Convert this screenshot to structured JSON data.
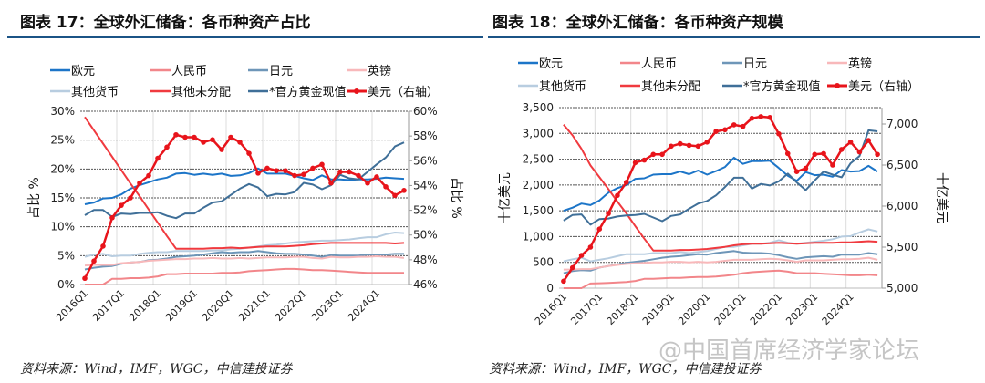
{
  "charts_meta": [
    {
      "title": "图表 17：全球外汇储备：各币种资产占比",
      "source": "资料来源：Wind，IMF，WGC，中信建投证券"
    },
    {
      "title": "图表 18：全球外汇储备：各币种资产规模",
      "source": "资料来源：Wind，IMF，WGC，中信建投证券"
    }
  ],
  "watermark": "@中国首席经济学家论坛",
  "colors": {
    "eur": "#1c75c8",
    "rmb": "#f2868a",
    "jpy": "#6e96b8",
    "gbp": "#f8b8ba",
    "other": "#b8cde0",
    "unalloc": "#f03a3f",
    "gold": "#3f6f98",
    "usd": "#e8141b"
  },
  "chart_data": [
    {
      "type": "line",
      "title": "图表 17：全球外汇储备：各币种资产占比",
      "ylabel": "占比 %",
      "y2label": "占比 %",
      "ylim": [
        0,
        30
      ],
      "yticks": [
        "0%",
        "5%",
        "10%",
        "15%",
        "20%",
        "25%",
        "30%"
      ],
      "y2lim": [
        46,
        60
      ],
      "y2ticks": [
        "46%",
        "48%",
        "50%",
        "52%",
        "54%",
        "56%",
        "58%",
        "60%"
      ],
      "xticks": [
        "2016Q1",
        "2017Q1",
        "2018Q1",
        "2019Q1",
        "2020Q1",
        "2021Q1",
        "2022Q1",
        "2023Q1",
        "2024Q1"
      ],
      "n_points": 36,
      "legend": "top",
      "series": [
        {
          "key": "eur",
          "name": "欧元",
          "axis": "left",
          "values": [
            13.9,
            14.2,
            14.9,
            15.0,
            15.6,
            16.6,
            17.2,
            17.7,
            18.2,
            18.5,
            19.2,
            19.3,
            19.0,
            19.2,
            19.0,
            19.2,
            18.8,
            18.9,
            19.3,
            20.1,
            19.2,
            19.2,
            19.2,
            18.8,
            18.4,
            18.1,
            18.9,
            18.2,
            18.2,
            18.1,
            18.2,
            18.2,
            18.3,
            18.5,
            18.4,
            18.3
          ]
        },
        {
          "key": "rmb",
          "name": "人民币",
          "axis": "left",
          "values": [
            0,
            0,
            0,
            1.0,
            1.0,
            1.1,
            1.1,
            1.2,
            1.4,
            1.8,
            1.8,
            1.9,
            1.9,
            1.9,
            1.9,
            2.0,
            2.0,
            2.1,
            2.3,
            2.4,
            2.5,
            2.6,
            2.7,
            2.7,
            2.6,
            2.5,
            2.5,
            2.4,
            2.3,
            2.2,
            2.1,
            2.0,
            2.0,
            2.0,
            2.0,
            2.0
          ]
        },
        {
          "key": "jpy",
          "name": "日元",
          "axis": "left",
          "values": [
            2.6,
            2.9,
            3.1,
            3.2,
            3.6,
            3.8,
            3.9,
            4.2,
            4.3,
            4.5,
            4.8,
            4.9,
            5.0,
            5.2,
            5.4,
            5.6,
            5.5,
            5.6,
            5.6,
            5.8,
            5.6,
            5.4,
            5.3,
            5.3,
            5.2,
            5.0,
            4.8,
            5.1,
            5.0,
            5.0,
            5.0,
            5.2,
            5.2,
            5.2,
            5.3,
            5.3
          ]
        },
        {
          "key": "gbp",
          "name": "英镑",
          "axis": "left",
          "values": [
            3.3,
            3.4,
            3.4,
            3.4,
            3.7,
            3.8,
            3.9,
            4.1,
            4.2,
            4.3,
            4.4,
            4.4,
            4.5,
            4.5,
            4.6,
            4.5,
            4.5,
            4.6,
            4.5,
            4.6,
            4.7,
            4.7,
            4.7,
            4.8,
            4.8,
            4.6,
            4.5,
            4.8,
            4.7,
            4.7,
            4.8,
            4.8,
            4.9,
            4.8,
            4.8,
            4.6
          ]
        },
        {
          "key": "other",
          "name": "其他货币",
          "axis": "left",
          "values": [
            4.8,
            5.2,
            5.3,
            4.9,
            5.0,
            5.0,
            5.3,
            5.5,
            5.6,
            5.6,
            5.8,
            5.8,
            5.8,
            5.8,
            5.9,
            5.9,
            6.1,
            6.2,
            6.4,
            6.6,
            6.8,
            6.9,
            7.1,
            7.3,
            7.4,
            7.5,
            7.6,
            7.6,
            7.7,
            7.8,
            8.0,
            8.2,
            8.2,
            8.7,
            9.0,
            8.9
          ]
        },
        {
          "key": "unalloc",
          "name": "其他未分配",
          "axis": "left",
          "values": [
            29.0,
            26.7,
            24.4,
            22.1,
            19.8,
            17.5,
            15.3,
            13.0,
            10.7,
            8.4,
            6.2,
            6.2,
            6.2,
            6.2,
            6.3,
            6.3,
            6.4,
            6.3,
            6.4,
            6.5,
            6.6,
            6.6,
            6.6,
            6.7,
            6.8,
            7.0,
            7.1,
            7.2,
            7.2,
            7.2,
            7.2,
            7.2,
            7.2,
            7.2,
            7.1,
            7.2
          ]
        },
        {
          "key": "gold",
          "name": "*官方黄金现值",
          "axis": "left",
          "values": [
            12.0,
            12.9,
            12.9,
            11.7,
            12.3,
            12.2,
            12.4,
            12.4,
            12.5,
            11.9,
            11.5,
            12.3,
            12.3,
            13.3,
            14.2,
            14.4,
            15.5,
            16.6,
            17.4,
            16.8,
            15.3,
            15.7,
            15.6,
            16.0,
            17.6,
            17.3,
            16.5,
            17.2,
            19.0,
            18.4,
            18.2,
            19.5,
            20.8,
            22.0,
            23.9,
            24.6
          ]
        },
        {
          "key": "usd",
          "name": "美元（右轴）",
          "axis": "right",
          "markers": true,
          "values": [
            46.5,
            47.9,
            49.1,
            51.4,
            52.4,
            53.0,
            54.2,
            54.8,
            56.2,
            57.1,
            58.1,
            57.9,
            57.9,
            57.5,
            57.7,
            56.9,
            57.9,
            57.5,
            56.6,
            55.0,
            55.4,
            55.2,
            55.2,
            54.8,
            54.9,
            55.4,
            55.7,
            54.2,
            55.1,
            55.1,
            54.8,
            54.2,
            54.7,
            53.9,
            53.2,
            53.6
          ]
        }
      ]
    },
    {
      "type": "line",
      "title": "图表 18：全球外汇储备：各币种资产规模",
      "ylabel": "十亿美元",
      "y2label": "十亿美元",
      "ylim": [
        0,
        3500
      ],
      "yticks": [
        "0",
        "500",
        "1,000",
        "1,500",
        "2,000",
        "2,500",
        "3,000",
        "3,500"
      ],
      "y2lim": [
        5000,
        7200
      ],
      "y2ticks": [
        "5,000",
        "5,500",
        "6,000",
        "6,500",
        "7,000"
      ],
      "xticks": [
        "2016Q1",
        "2017Q1",
        "2018Q1",
        "2019Q1",
        "2020Q1",
        "2021Q1",
        "2022Q1",
        "2023Q1",
        "2024Q1"
      ],
      "n_points": 36,
      "legend": "top",
      "series": [
        {
          "key": "eur",
          "name": "欧元",
          "axis": "left",
          "values": [
            1500,
            1560,
            1640,
            1610,
            1700,
            1850,
            1940,
            2000,
            2120,
            2130,
            2200,
            2210,
            2210,
            2260,
            2210,
            2280,
            2200,
            2270,
            2350,
            2530,
            2410,
            2460,
            2460,
            2470,
            2330,
            2180,
            2080,
            2250,
            2190,
            2200,
            2160,
            2290,
            2260,
            2270,
            2370,
            2260
          ]
        },
        {
          "key": "rmb",
          "name": "人民币",
          "axis": "left",
          "values": [
            0,
            0,
            0,
            90,
            95,
            100,
            110,
            120,
            140,
            180,
            180,
            190,
            200,
            200,
            210,
            215,
            215,
            225,
            240,
            260,
            290,
            310,
            320,
            330,
            340,
            320,
            290,
            290,
            290,
            280,
            270,
            260,
            250,
            250,
            260,
            250
          ]
        },
        {
          "key": "jpy",
          "name": "日元",
          "axis": "left",
          "values": [
            290,
            330,
            350,
            340,
            400,
            430,
            460,
            490,
            510,
            530,
            560,
            590,
            610,
            620,
            640,
            660,
            650,
            680,
            700,
            720,
            690,
            680,
            680,
            670,
            640,
            600,
            570,
            600,
            610,
            620,
            610,
            650,
            650,
            650,
            680,
            660
          ]
        },
        {
          "key": "gbp",
          "name": "英镑",
          "axis": "left",
          "values": [
            360,
            360,
            370,
            370,
            400,
            430,
            450,
            470,
            480,
            490,
            500,
            500,
            510,
            510,
            500,
            510,
            500,
            510,
            530,
            550,
            550,
            550,
            560,
            570,
            560,
            540,
            510,
            540,
            540,
            540,
            550,
            560,
            560,
            570,
            590,
            550
          ]
        },
        {
          "key": "other",
          "name": "其他货币",
          "axis": "left",
          "values": [
            520,
            560,
            590,
            520,
            550,
            580,
            620,
            660,
            660,
            660,
            680,
            680,
            680,
            700,
            680,
            700,
            720,
            760,
            800,
            800,
            830,
            860,
            860,
            880,
            930,
            880,
            860,
            880,
            900,
            920,
            950,
            1000,
            1010,
            1080,
            1140,
            1100
          ]
        },
        {
          "key": "unalloc",
          "name": "其他未分配",
          "axis": "left",
          "values": [
            3170,
            2960,
            2700,
            2380,
            2150,
            1920,
            1680,
            1450,
            1200,
            960,
            730,
            730,
            730,
            740,
            740,
            750,
            760,
            780,
            800,
            830,
            850,
            860,
            860,
            870,
            880,
            870,
            860,
            870,
            880,
            880,
            880,
            890,
            890,
            900,
            910,
            900
          ]
        },
        {
          "key": "gold",
          "name": "*官方黄金现值",
          "axis": "left",
          "values": [
            1310,
            1420,
            1430,
            1230,
            1340,
            1350,
            1390,
            1410,
            1420,
            1440,
            1370,
            1300,
            1400,
            1430,
            1540,
            1640,
            1690,
            1800,
            1960,
            2140,
            2140,
            1930,
            2020,
            1990,
            2070,
            2220,
            2050,
            1900,
            2090,
            2260,
            2200,
            2150,
            2420,
            2560,
            3060,
            3040
          ]
        },
        {
          "key": "usd",
          "name": "美元（右轴）",
          "axis": "right",
          "markers": true,
          "values": [
            5085,
            5250,
            5400,
            5500,
            5720,
            5910,
            6130,
            6290,
            6530,
            6560,
            6630,
            6630,
            6730,
            6760,
            6740,
            6730,
            6780,
            6910,
            6930,
            6990,
            6970,
            7070,
            7090,
            7080,
            6880,
            6640,
            6420,
            6460,
            6630,
            6640,
            6500,
            6690,
            6780,
            6660,
            6800,
            6630
          ]
        }
      ]
    }
  ]
}
